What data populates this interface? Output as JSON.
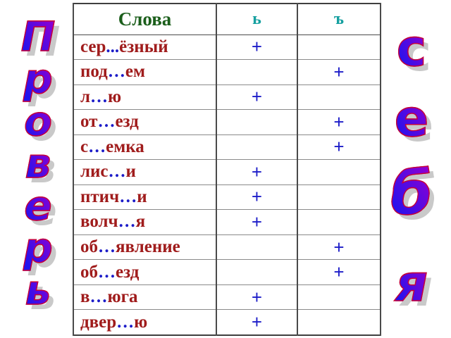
{
  "decor": {
    "left_word": "Проверь",
    "right_word": "себя",
    "left_word_letters": [
      "П",
      "р",
      "о",
      "в",
      "е",
      "р",
      "ь"
    ],
    "right_word_letters": [
      "с",
      "е",
      "б",
      "я"
    ],
    "letter_gradient_top": "#8a00d4",
    "letter_gradient_bottom": "#2113ee",
    "letter_outline_color": "#cc0030",
    "letter_shadow_color": "#c9c9c9"
  },
  "table": {
    "headers": [
      "Слова",
      "ь",
      "ъ"
    ],
    "plus_symbol": "+",
    "rows": [
      {
        "prefix": "сер",
        "dots": "...",
        "suffix": "ёзный",
        "plus_column": "ь"
      },
      {
        "prefix": "под",
        "dots": "…",
        "suffix": "ем",
        "plus_column": "ъ"
      },
      {
        "prefix": "л",
        "dots": "…",
        "suffix": "ю",
        "plus_column": "ь"
      },
      {
        "prefix": "от",
        "dots": "…",
        "suffix": "езд",
        "plus_column": "ъ"
      },
      {
        "prefix": "с",
        "dots": "…",
        "suffix": "емка",
        "plus_column": "ъ"
      },
      {
        "prefix": "лис",
        "dots": "…",
        "suffix": "и",
        "plus_column": "ь"
      },
      {
        "prefix": "птич",
        "dots": "…",
        "suffix": "и",
        "plus_column": "ь"
      },
      {
        "prefix": "волч",
        "dots": "…",
        "suffix": "я",
        "plus_column": "ь"
      },
      {
        "prefix": "об",
        "dots": "…",
        "suffix": "явление",
        "plus_column": "ъ"
      },
      {
        "prefix": "об",
        "dots": "…",
        "suffix": "езд",
        "plus_column": "ъ"
      },
      {
        "prefix": "в",
        "dots": "…",
        "suffix": "юга",
        "plus_column": "ь"
      },
      {
        "prefix": "двер",
        "dots": "…",
        "suffix": "ю",
        "plus_column": "ь"
      }
    ]
  },
  "colors": {
    "word_text": "#a01c1c",
    "dots_and_plus": "#1c1cc8",
    "header_words": "#1b5e1b",
    "header_signs": "#16a0a0",
    "table_border": "#4a4a4a"
  }
}
